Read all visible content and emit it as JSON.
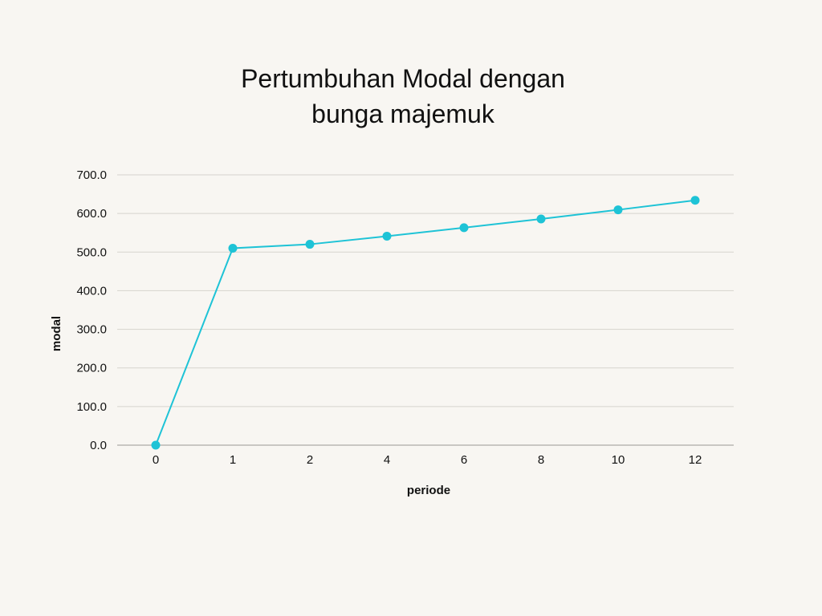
{
  "chart_data": {
    "type": "line",
    "title": "Pertumbuhan Modal dengan bunga majemuk",
    "title_lines": [
      "Pertumbuhan Modal dengan",
      "bunga majemuk"
    ],
    "xlabel": "periode",
    "ylabel": "modal",
    "categories": [
      "0",
      "1",
      "2",
      "4",
      "6",
      "8",
      "10",
      "12"
    ],
    "series": [
      {
        "name": "modal",
        "values": [
          0,
          510.0,
          520.2,
          541.2,
          563.1,
          585.8,
          609.5,
          634.1
        ],
        "color": "#1ec3d6"
      }
    ],
    "ylim": [
      0,
      700
    ],
    "yticks": [
      "0.0",
      "100.0",
      "200.0",
      "300.0",
      "400.0",
      "500.0",
      "600.0",
      "700.0"
    ],
    "grid": true,
    "legend": "none"
  },
  "colors": {
    "background": "#f8f6f2",
    "line": "#1ec3d6",
    "grid": "#d6d3cd",
    "axis": "#9a9894"
  }
}
